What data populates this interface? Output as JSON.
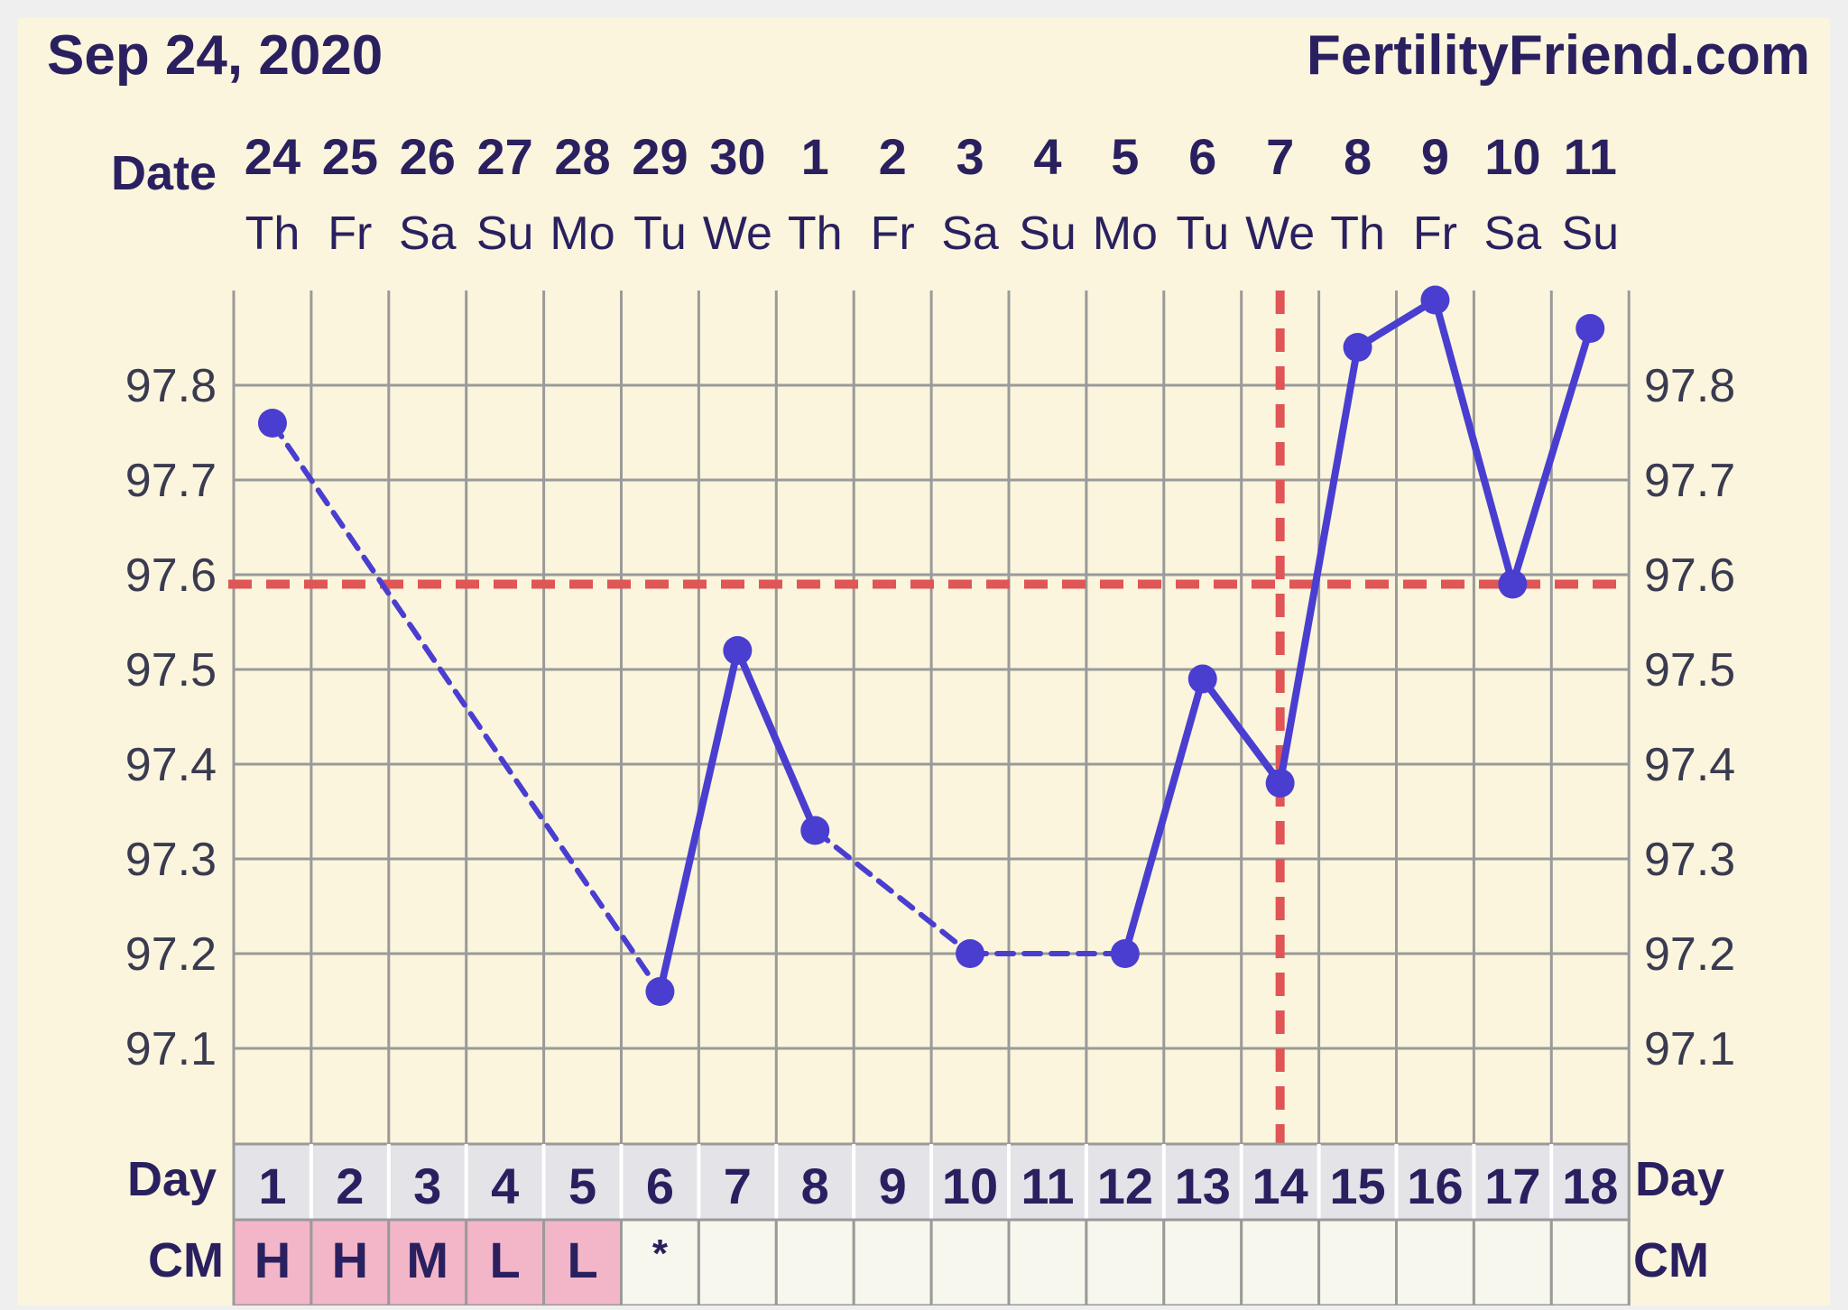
{
  "header": {
    "date": "Sep 24, 2020",
    "site": "FertilityFriend.com"
  },
  "labels": {
    "date_row": "Date",
    "day_row": "Day",
    "cm_row": "CM"
  },
  "colors": {
    "background": "#faf5dc",
    "outer": "#efefef",
    "text": "#2a2060",
    "axis_text": "#3a3a50",
    "grid": "#9a9a9a",
    "line": "#4a3ed0",
    "coverline": "#e05556",
    "day_row_bg": "#e3e3e8",
    "cm_highlight": "#f3b6c8",
    "cm_empty": "#f8f7ee"
  },
  "chart_data": {
    "type": "line",
    "dates": [
      "24",
      "25",
      "26",
      "27",
      "28",
      "29",
      "30",
      "1",
      "2",
      "3",
      "4",
      "5",
      "6",
      "7",
      "8",
      "9",
      "10",
      "11"
    ],
    "weekdays": [
      "Th",
      "Fr",
      "Sa",
      "Su",
      "Mo",
      "Tu",
      "We",
      "Th",
      "Fr",
      "Sa",
      "Su",
      "Mo",
      "Tu",
      "We",
      "Th",
      "Fr",
      "Sa",
      "Su"
    ],
    "cycle_days": [
      "1",
      "2",
      "3",
      "4",
      "5",
      "6",
      "7",
      "8",
      "9",
      "10",
      "11",
      "12",
      "13",
      "14",
      "15",
      "16",
      "17",
      "18"
    ],
    "cm": [
      "H",
      "H",
      "M",
      "L",
      "L",
      "*",
      "",
      "",
      "",
      "",
      "",
      "",
      "",
      "",
      "",
      "",
      "",
      ""
    ],
    "cm_highlighted": [
      true,
      true,
      true,
      true,
      true,
      false,
      false,
      false,
      false,
      false,
      false,
      false,
      false,
      false,
      false,
      false,
      false,
      false
    ],
    "temperatures": [
      {
        "day": 1,
        "temp": 97.76
      },
      {
        "day": 6,
        "temp": 97.16
      },
      {
        "day": 7,
        "temp": 97.52
      },
      {
        "day": 8,
        "temp": 97.33
      },
      {
        "day": 10,
        "temp": 97.2
      },
      {
        "day": 12,
        "temp": 97.2
      },
      {
        "day": 13,
        "temp": 97.49
      },
      {
        "day": 14,
        "temp": 97.38
      },
      {
        "day": 15,
        "temp": 97.84
      },
      {
        "day": 16,
        "temp": 97.89
      },
      {
        "day": 17,
        "temp": 97.59
      },
      {
        "day": 18,
        "temp": 97.86
      }
    ],
    "segments": [
      {
        "from": 1,
        "to": 6,
        "style": "dashed"
      },
      {
        "from": 6,
        "to": 7,
        "style": "solid"
      },
      {
        "from": 7,
        "to": 8,
        "style": "solid"
      },
      {
        "from": 8,
        "to": 10,
        "style": "dashed"
      },
      {
        "from": 10,
        "to": 12,
        "style": "dashed"
      },
      {
        "from": 12,
        "to": 13,
        "style": "solid"
      },
      {
        "from": 13,
        "to": 14,
        "style": "solid"
      },
      {
        "from": 14,
        "to": 15,
        "style": "solid"
      },
      {
        "from": 15,
        "to": 16,
        "style": "solid"
      },
      {
        "from": 16,
        "to": 17,
        "style": "solid"
      },
      {
        "from": 17,
        "to": 18,
        "style": "solid"
      }
    ],
    "coverline_temp": 97.59,
    "ovulation_day": 14,
    "y_ticks": [
      "97.8",
      "97.7",
      "97.6",
      "97.5",
      "97.4",
      "97.3",
      "97.2",
      "97.1"
    ],
    "ylim": [
      97.0,
      97.9
    ],
    "grid": true
  }
}
